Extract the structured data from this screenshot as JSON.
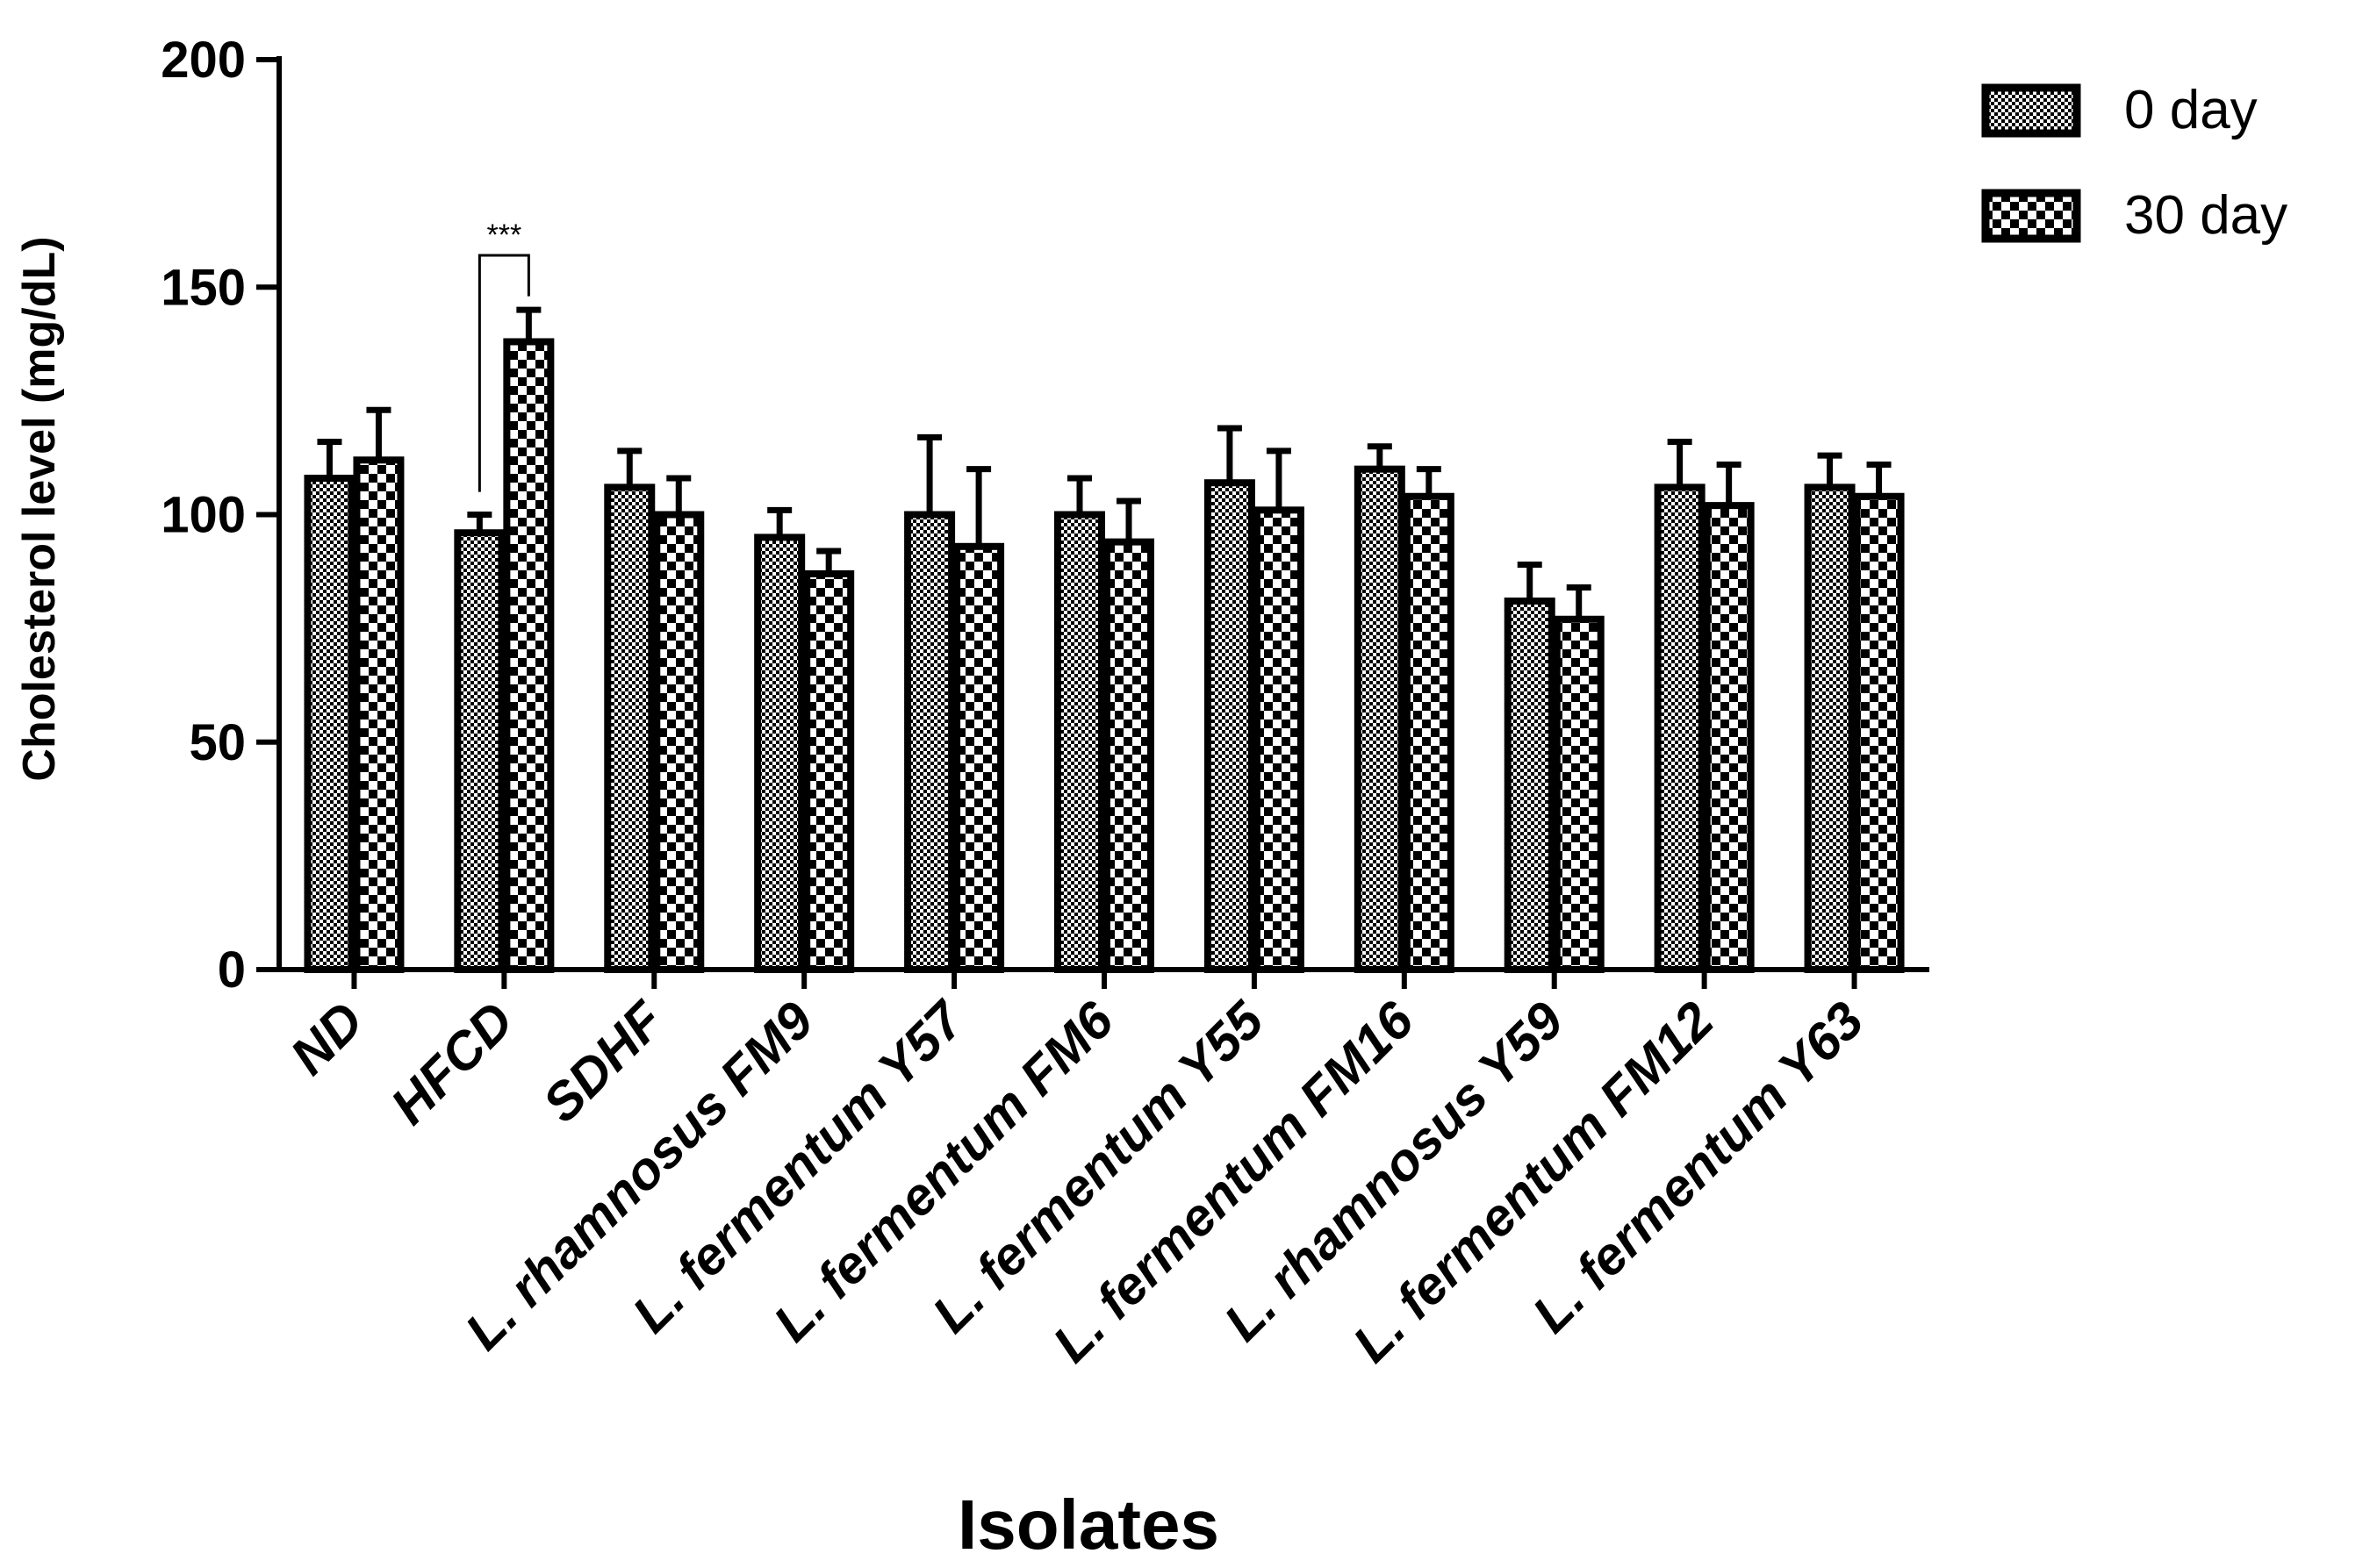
{
  "chart_data": {
    "type": "bar",
    "title": "",
    "xlabel": "Isolates",
    "ylabel": "Cholesterol level (mg/dL)",
    "ylim": [
      0,
      200
    ],
    "yticks": [
      "0",
      "50",
      "100",
      "150",
      "200"
    ],
    "categories": [
      "ND",
      "HFCD",
      "SDHF",
      "L. rhamnosus FM9",
      "L. fermentum Y57",
      "L. fermentum FM6",
      "L. fermentum Y55",
      "L. fermentum FM16",
      "L. rhamnosus Y59",
      "L. fermentum FM12",
      "L. fermentum Y63"
    ],
    "series": [
      {
        "name": "0 day",
        "values": [
          108,
          96,
          106,
          95,
          100,
          100,
          107,
          110,
          81,
          106,
          106
        ],
        "errors": [
          8,
          4,
          8,
          6,
          17,
          8,
          12,
          5,
          8,
          10,
          7
        ]
      },
      {
        "name": "30 day",
        "values": [
          112,
          138,
          100,
          87,
          93,
          94,
          101,
          104,
          77,
          102,
          104
        ],
        "errors": [
          11,
          7,
          8,
          5,
          17,
          9,
          13,
          6,
          7,
          9,
          7
        ]
      }
    ],
    "legend_position": "top-right",
    "annotations": [
      {
        "text": "***",
        "category": "HFCD"
      }
    ]
  }
}
